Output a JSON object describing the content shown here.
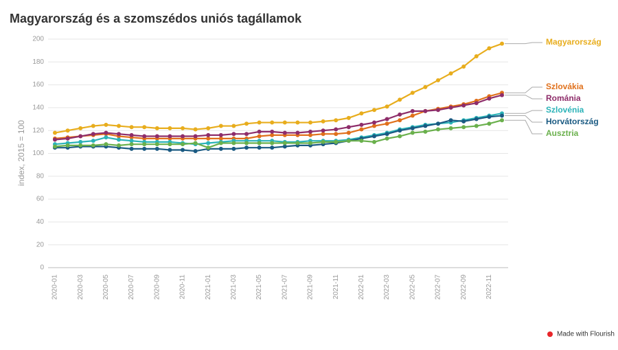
{
  "chart_data": {
    "type": "line",
    "title": "Magyarország és a szomszédos uniós tagállamok",
    "y_label": "index, 2015 = 100",
    "footer": "Made with Flourish",
    "categories": [
      "2020-01",
      null,
      "2020-03",
      null,
      "2020-05",
      null,
      "2020-07",
      null,
      "2020-09",
      null,
      "2020-11",
      null,
      "2021-01",
      null,
      "2021-03",
      null,
      "2021-05",
      null,
      "2021-07",
      null,
      "2021-09",
      null,
      "2021-11",
      null,
      "2022-01",
      null,
      "2022-03",
      null,
      "2022-05",
      null,
      "2022-07",
      null,
      "2022-09",
      null,
      "2022-11",
      null
    ],
    "ylim": [
      0,
      200
    ],
    "yticks": [
      0,
      20,
      40,
      60,
      80,
      100,
      120,
      140,
      160,
      180,
      200
    ],
    "grid": true,
    "series": [
      {
        "name": "Magyarország",
        "color": "#e8ad1d",
        "values": [
          118,
          120,
          122,
          124,
          125,
          124,
          123,
          123,
          122,
          122,
          122,
          121,
          122,
          124,
          124,
          126,
          127,
          127,
          127,
          127,
          127,
          128,
          129,
          131,
          135,
          138,
          141,
          147,
          153,
          158,
          164,
          170,
          176,
          185,
          192,
          196
        ]
      },
      {
        "name": "Szlovákia",
        "color": "#e0701b",
        "values": [
          113,
          114,
          115,
          116,
          117,
          115,
          114,
          113,
          113,
          113,
          113,
          113,
          113,
          113,
          113,
          113,
          115,
          116,
          116,
          116,
          116,
          117,
          117,
          118,
          121,
          124,
          126,
          129,
          133,
          137,
          139,
          141,
          143,
          146,
          150,
          153
        ]
      },
      {
        "name": "Románia",
        "color": "#8e2d6a",
        "values": [
          112,
          113,
          115,
          117,
          118,
          117,
          116,
          115,
          115,
          115,
          115,
          115,
          116,
          116,
          117,
          117,
          119,
          119,
          118,
          118,
          119,
          120,
          121,
          123,
          125,
          127,
          130,
          134,
          137,
          137,
          138,
          140,
          142,
          144,
          148,
          151
        ]
      },
      {
        "name": "Szlovénia",
        "color": "#2bb3b8",
        "values": [
          108,
          109,
          110,
          111,
          114,
          112,
          111,
          110,
          110,
          110,
          109,
          108,
          109,
          110,
          111,
          111,
          111,
          111,
          110,
          110,
          111,
          111,
          111,
          112,
          114,
          116,
          118,
          121,
          123,
          125,
          126,
          127,
          129,
          131,
          133,
          135
        ]
      },
      {
        "name": "Horvátország",
        "color": "#1a5a82",
        "values": [
          105,
          105,
          106,
          106,
          106,
          105,
          104,
          104,
          104,
          103,
          103,
          102,
          104,
          104,
          104,
          105,
          105,
          105,
          106,
          107,
          107,
          108,
          109,
          111,
          113,
          115,
          117,
          120,
          122,
          124,
          126,
          129,
          128,
          130,
          132,
          133
        ]
      },
      {
        "name": "Ausztria",
        "color": "#6ab04c",
        "values": [
          106,
          107,
          107,
          107,
          108,
          107,
          108,
          108,
          108,
          108,
          108,
          109,
          105,
          109,
          109,
          109,
          109,
          109,
          109,
          109,
          109,
          110,
          110,
          111,
          111,
          110,
          113,
          115,
          118,
          119,
          121,
          122,
          123,
          124,
          126,
          129
        ]
      }
    ]
  }
}
